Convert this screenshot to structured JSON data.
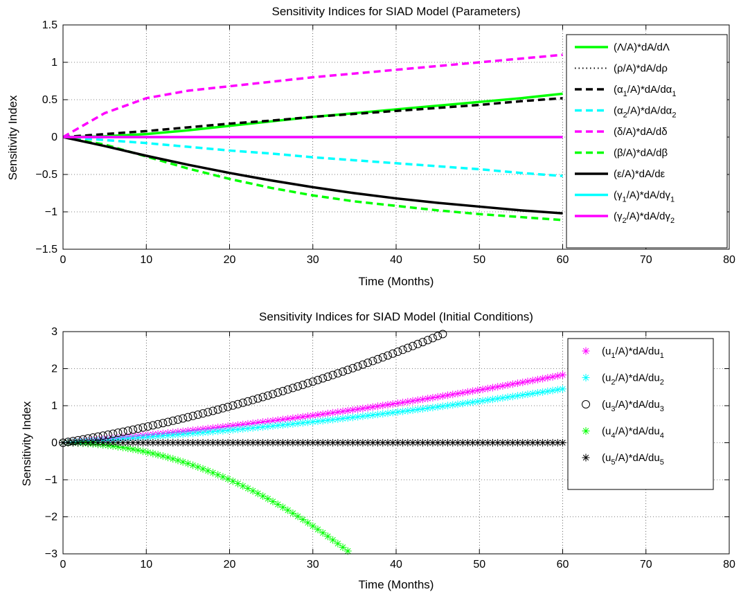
{
  "chart_data": [
    {
      "type": "line",
      "title": "Sensitivity Indices for SIAD Model (Parameters)",
      "xlabel": "Time (Months)",
      "ylabel": "Sensitivity Index",
      "xlim": [
        0,
        80
      ],
      "ylim": [
        -1.5,
        1.5
      ],
      "xticks": [
        "0",
        "10",
        "20",
        "30",
        "40",
        "50",
        "60",
        "70",
        "80"
      ],
      "yticks": [
        "−1.5",
        "−1",
        "−0.5",
        "0",
        "0.5",
        "1",
        "1.5"
      ],
      "grid": "dotted",
      "legend_position": "top-right",
      "x": [
        0,
        5,
        10,
        15,
        20,
        25,
        30,
        35,
        40,
        45,
        50,
        55,
        60
      ],
      "series": [
        {
          "name": "(Λ/A)*dA/dΛ",
          "label_main": "(Λ/A)*dA/dΛ",
          "label_sub": "",
          "label_tail": "",
          "color": "#00ff00",
          "style": "solid",
          "values": [
            0,
            0.01,
            0.04,
            0.09,
            0.15,
            0.21,
            0.27,
            0.32,
            0.37,
            0.42,
            0.47,
            0.52,
            0.58
          ]
        },
        {
          "name": "(ρ/A)*dA/dρ",
          "label_main": "(ρ/A)*dA/dρ",
          "label_sub": "",
          "label_tail": "",
          "color": "#000000",
          "style": "dotted",
          "values": [
            0,
            0,
            0,
            0,
            0,
            0,
            0,
            0,
            0,
            0,
            0,
            0,
            0
          ]
        },
        {
          "name": "(α1/A)*dA/dα1",
          "label_main": "(α",
          "label_sub": "1",
          "label_tail": "/A)*dA/dα",
          "label_sub2": "1",
          "color": "#000000",
          "style": "dashed",
          "values": [
            0,
            0.04,
            0.08,
            0.13,
            0.18,
            0.22,
            0.27,
            0.31,
            0.35,
            0.39,
            0.43,
            0.48,
            0.52
          ]
        },
        {
          "name": "(α2/A)*dA/dα2",
          "label_main": "(α",
          "label_sub": "2",
          "label_tail": "/A)*dA/dα",
          "label_sub2": "2",
          "color": "#00ffff",
          "style": "dashed",
          "values": [
            0,
            -0.04,
            -0.08,
            -0.13,
            -0.18,
            -0.22,
            -0.27,
            -0.31,
            -0.35,
            -0.39,
            -0.43,
            -0.48,
            -0.52
          ]
        },
        {
          "name": "(δ/A)*dA/dδ",
          "label_main": "(δ/A)*dA/dδ",
          "label_sub": "",
          "label_tail": "",
          "color": "#ff00ff",
          "style": "dashed",
          "values": [
            0,
            0.32,
            0.52,
            0.62,
            0.68,
            0.74,
            0.8,
            0.85,
            0.9,
            0.95,
            1.0,
            1.05,
            1.1
          ]
        },
        {
          "name": "(β/A)*dA/dβ",
          "label_main": "(β/A)*dA/dβ",
          "label_sub": "",
          "label_tail": "",
          "color": "#00ff00",
          "style": "dashed",
          "values": [
            0,
            -0.1,
            -0.26,
            -0.42,
            -0.56,
            -0.68,
            -0.78,
            -0.86,
            -0.92,
            -0.98,
            -1.03,
            -1.07,
            -1.11
          ]
        },
        {
          "name": "(ε/A)*dA/dε",
          "label_main": "(ε/A)*dA/dε",
          "label_sub": "",
          "label_tail": "",
          "color": "#000000",
          "style": "solid",
          "values": [
            0,
            -0.12,
            -0.25,
            -0.37,
            -0.48,
            -0.58,
            -0.67,
            -0.75,
            -0.82,
            -0.88,
            -0.93,
            -0.98,
            -1.02
          ]
        },
        {
          "name": "(γ1/A)*dA/dγ1",
          "label_main": "(γ",
          "label_sub": "1",
          "label_tail": "/A)*dA/dγ",
          "label_sub2": "1",
          "color": "#00ffff",
          "style": "solid",
          "values": [
            0,
            0,
            0,
            0,
            0,
            0,
            0,
            0,
            0,
            0,
            0,
            0,
            0
          ]
        },
        {
          "name": "(γ2/A)*dA/dγ2",
          "label_main": "(γ",
          "label_sub": "2",
          "label_tail": "/A)*dA/dγ",
          "label_sub2": "2",
          "color": "#ff00ff",
          "style": "solid",
          "values": [
            0,
            0,
            0,
            0,
            0,
            0,
            0,
            0,
            0,
            0,
            0,
            0,
            0
          ]
        }
      ]
    },
    {
      "type": "scatter",
      "title": "Sensitivity Indices for SIAD Model (Initial Conditions)",
      "xlabel": "Time (Months)",
      "ylabel": "Sensitivity Index",
      "xlim": [
        0,
        80
      ],
      "ylim": [
        -3,
        3
      ],
      "xticks": [
        "0",
        "10",
        "20",
        "30",
        "40",
        "50",
        "60",
        "70",
        "80"
      ],
      "yticks": [
        "−3",
        "−2",
        "−1",
        "0",
        "1",
        "2",
        "3"
      ],
      "grid": "dotted",
      "legend_position": "top-right",
      "series": [
        {
          "name": "(u1/A)*dA/du1",
          "label_main": "(u",
          "label_sub": "1",
          "label_tail": "/A)*dA/du",
          "label_sub2": "1",
          "color": "#ff00ff",
          "marker": "star",
          "x_end": 60,
          "formula": "quad",
          "a": 0.0002,
          "b": 0.0185,
          "c": 0
        },
        {
          "name": "(u2/A)*dA/du2",
          "label_main": "(u",
          "label_sub": "2",
          "label_tail": "/A)*dA/du",
          "label_sub2": "2",
          "color": "#00ffff",
          "marker": "star",
          "x_end": 60,
          "formula": "quad",
          "a": 0.00018,
          "b": 0.0134,
          "c": 0
        },
        {
          "name": "(u3/A)*dA/du3",
          "label_main": "(u",
          "label_sub": "3",
          "label_tail": "/A)*dA/du",
          "label_sub2": "3",
          "color": "#000000",
          "marker": "circle",
          "x_end": 46,
          "formula": "quad",
          "a": 0.0006,
          "b": 0.037,
          "c": 0
        },
        {
          "name": "(u4/A)*dA/du4",
          "label_main": "(u",
          "label_sub": "4",
          "label_tail": "/A)*dA/du",
          "label_sub2": "4",
          "color": "#00ff00",
          "marker": "star",
          "x_end": 34.5,
          "formula": "decay",
          "a": -0.0025,
          "b": 0,
          "c": 0
        },
        {
          "name": "(u5/A)*dA/du5",
          "label_main": "(u",
          "label_sub": "5",
          "label_tail": "/A)*dA/du",
          "label_sub2": "5",
          "color": "#000000",
          "marker": "asterisk",
          "x_end": 60,
          "formula": "zero",
          "a": 0,
          "b": 0,
          "c": 0
        }
      ]
    }
  ]
}
